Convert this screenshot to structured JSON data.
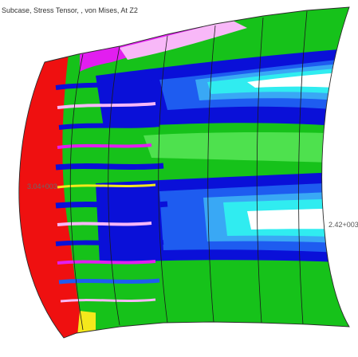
{
  "viewport": {
    "title": "Subcase, Stress Tensor, , von Mises, At Z2"
  },
  "annotations": {
    "right_value": "2.42+003",
    "left_value": "3.04+003"
  },
  "colors": {
    "background": "#ffffff",
    "band_red": "#ef1010",
    "band_magenta": "#e21ef0",
    "band_pink": "#f8b8f8",
    "band_yellow": "#f4e81c",
    "band_green": "#16c21a",
    "band_light_green": "#4ee14e",
    "band_blue": "#0a10d8",
    "band_medium_blue": "#1e5cf0",
    "band_light_blue": "#39a8f5",
    "band_cyan": "#30ecf0",
    "band_white": "#ffffff",
    "mesh_line": "#1a1a1a"
  }
}
